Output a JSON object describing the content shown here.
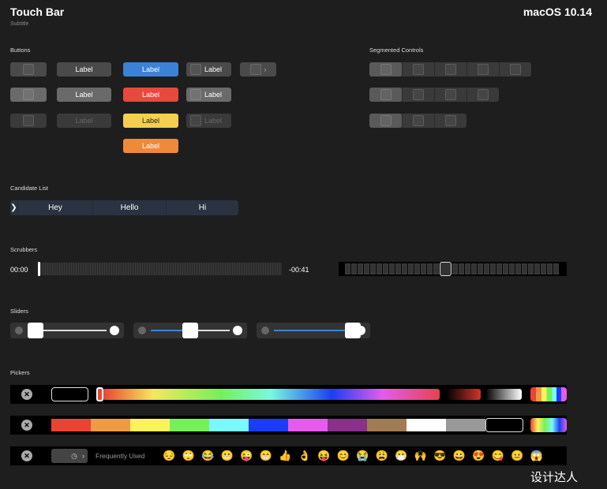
{
  "header": {
    "title": "Touch Bar",
    "subtitle": "Subtitle",
    "os": "macOS 10.14"
  },
  "sections": {
    "buttons": "Buttons",
    "segmented": "Segmented Controls",
    "candidate": "Candidate List",
    "scrubbers": "Scrubbers",
    "sliders": "Sliders",
    "pickers": "Pickers"
  },
  "buttons": {
    "label": "Label",
    "colors": {
      "blue": "#3b82d6",
      "red": "#e8493f",
      "yellow": "#f5cf4f",
      "orange": "#ef8a3b"
    }
  },
  "candidates": {
    "items": [
      "Hey",
      "Hello",
      "Hi"
    ]
  },
  "scrubber": {
    "start": "00:00",
    "remaining": "-00:41",
    "selected_index": 15,
    "count": 33
  },
  "sliders": [
    {
      "value": 0.0
    },
    {
      "value": 0.5
    },
    {
      "value": 1.0
    }
  ],
  "pickers": {
    "swatches": [
      "#e94432",
      "#f09a45",
      "#fdf25d",
      "#74f158",
      "#78f9fb",
      "#1a3ef5",
      "#e55bee",
      "#8a2f8c",
      "#a37b53",
      "#ffffff",
      "#999999",
      "#000000"
    ],
    "frequently_used": "Frequently Used",
    "emojis": [
      "😔",
      "🙄",
      "😂",
      "😬",
      "😜",
      "😁",
      "👍",
      "👌",
      "😝",
      "😊",
      "😭",
      "😩",
      "😷",
      "🙌",
      "😎",
      "😀",
      "😍",
      "😋",
      "😐",
      "😱"
    ]
  },
  "watermark": "设计达人"
}
